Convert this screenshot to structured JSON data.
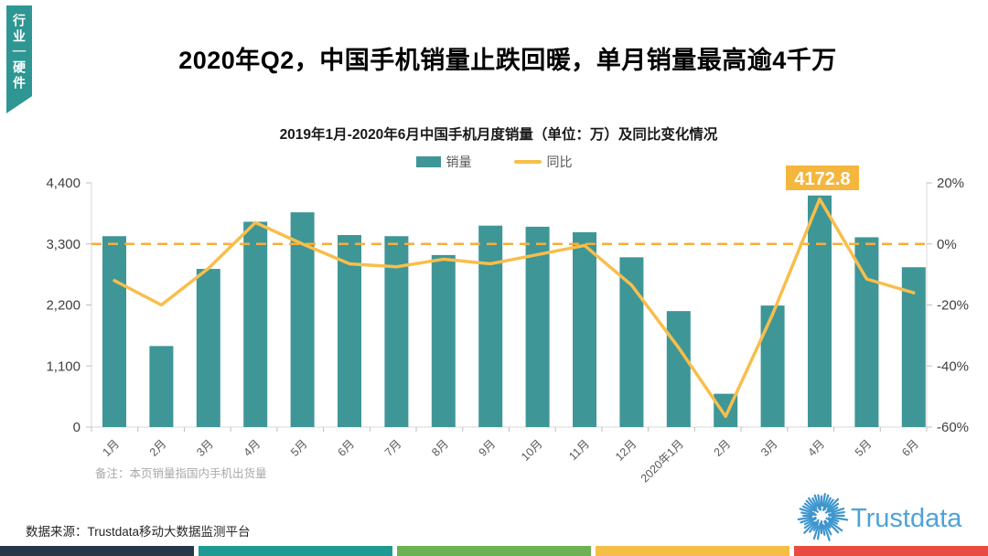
{
  "tab": {
    "label": "行业｜硬件",
    "color": "#2E9693"
  },
  "title": "2020年Q2，中国手机销量止跌回暖，单月销量最高逾4千万",
  "chart_data": {
    "type": "bar",
    "title": "2019年1月-2020年6月中国手机月度销量（单位：万）及同比变化情况",
    "categories": [
      "1月",
      "2月",
      "3月",
      "4月",
      "5月",
      "6月",
      "7月",
      "8月",
      "9月",
      "10月",
      "11月",
      "12月",
      "2020年1月",
      "2月",
      "3月",
      "4月",
      "5月",
      "6月"
    ],
    "series": [
      {
        "name": "销量",
        "type": "bar",
        "color": "#3E9697",
        "values": [
          3440,
          1460,
          2850,
          3700,
          3870,
          3460,
          3440,
          3100,
          3630,
          3610,
          3510,
          3060,
          2090,
          600,
          2190,
          4172.8,
          3420,
          2880
        ]
      },
      {
        "name": "同比",
        "type": "line",
        "color": "#F8BE4B",
        "values": [
          -12,
          -20,
          -8,
          7,
          0,
          -6.5,
          -7.5,
          -5,
          -6.5,
          -3.5,
          -0.5,
          -13.5,
          -34,
          -56.5,
          -23,
          14.7,
          -11.5,
          -16
        ]
      }
    ],
    "left_axis": {
      "label_unit": "万",
      "min": 0,
      "max": 4400,
      "ticks": [
        "0",
        "1,100",
        "2,200",
        "3,300",
        "4,400"
      ]
    },
    "right_axis": {
      "label_unit": "%",
      "min": -60,
      "max": 20,
      "ticks": [
        "-60%",
        "-40%",
        "-20%",
        "0%",
        "20%"
      ]
    },
    "zero_line": {
      "value_pct": 0,
      "color": "#F5AE3D",
      "style": "dashed"
    },
    "annotation": {
      "index": 15,
      "text": "4172.8",
      "bg": "#F5B63E",
      "fg": "#FFFFFF"
    },
    "grid": "off",
    "legend_position": "top",
    "note": "备注：本页销量指国内手机出货量"
  },
  "legend": [
    {
      "label": "销量",
      "swatch": "bar",
      "color": "#3E9697"
    },
    {
      "label": "同比",
      "swatch": "line",
      "color": "#F8BE4B"
    }
  ],
  "footer": {
    "source": "数据来源：Trustdata移动大数据监测平台",
    "logo_text": "Trustdata",
    "logo_color": "#4DA3D8"
  },
  "bottom_strip": [
    "#27374A",
    "#1E9A92",
    "#6DB155",
    "#F6BE45",
    "#EA4B40"
  ]
}
